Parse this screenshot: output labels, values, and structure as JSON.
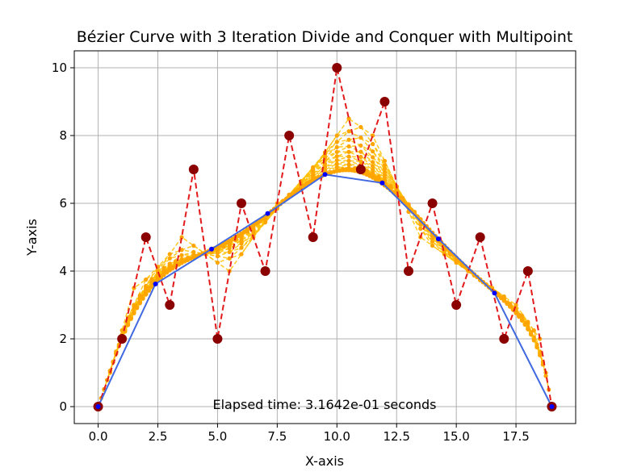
{
  "chart_data": {
    "type": "line",
    "title": "Bézier Curve with 3 Iteration Divide and Conquer with Multipoint",
    "xlabel": "X-axis",
    "ylabel": "Y-axis",
    "xlim": [
      -1.0,
      20.0
    ],
    "ylim": [
      -0.5,
      10.5
    ],
    "xticks": [
      0.0,
      2.5,
      5.0,
      7.5,
      10.0,
      12.5,
      15.0,
      17.5
    ],
    "xtick_labels": [
      "0.0",
      "2.5",
      "5.0",
      "7.5",
      "10.0",
      "12.5",
      "15.0",
      "17.5"
    ],
    "yticks": [
      0,
      2,
      4,
      6,
      8,
      10
    ],
    "ytick_labels": [
      "0",
      "2",
      "4",
      "6",
      "8",
      "10"
    ],
    "grid": true,
    "annotation": "Elapsed time: 3.1642e-01 seconds",
    "colors": {
      "control": "#e31a1c",
      "control_marker": "#8b0000",
      "intermediate": "#ffc000",
      "intermediate_marker": "#ffa500",
      "curve": "#4169e1",
      "curve_marker": "#0000ff"
    },
    "series": [
      {
        "style": "dashed",
        "x": [
          0,
          1,
          2,
          3,
          4,
          5,
          6,
          7,
          8,
          9,
          10,
          11,
          12,
          13,
          14,
          15,
          16,
          17,
          18,
          19
        ],
        "y": [
          0,
          2,
          5,
          3,
          7,
          2,
          6,
          4,
          8,
          5,
          10,
          7,
          9,
          4,
          6,
          3,
          5,
          2,
          4,
          0
        ]
      },
      {
        "style": "solid",
        "x": [
          0.0,
          2.4,
          4.75,
          7.1,
          9.5,
          11.9,
          14.25,
          16.6,
          19.0
        ],
        "y": [
          0.0,
          3.62,
          4.65,
          5.7,
          6.85,
          6.6,
          4.95,
          3.35,
          0.0
        ]
      }
    ]
  }
}
